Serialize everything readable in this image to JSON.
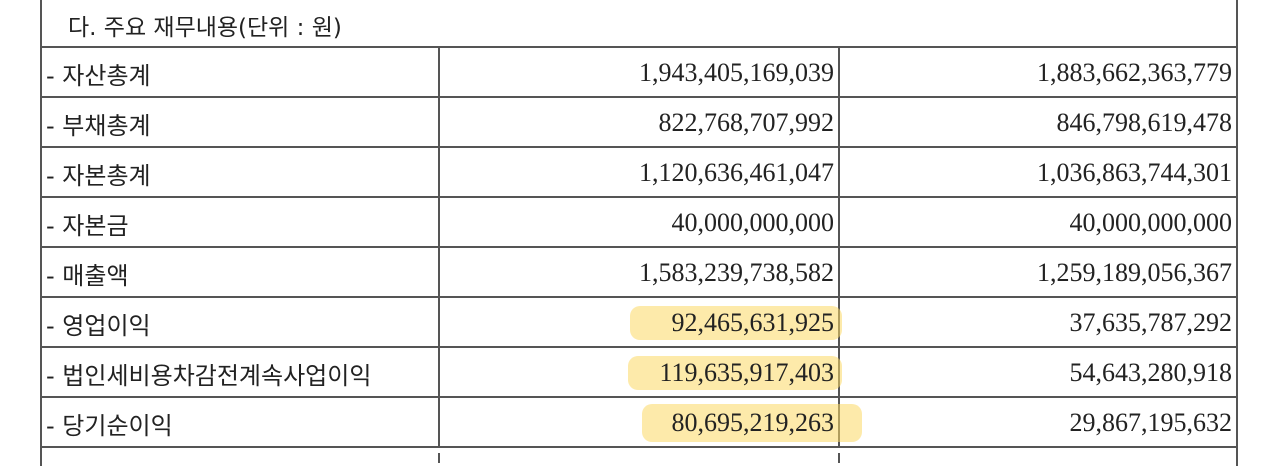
{
  "title": "다. 주요 재무내용(단위 : 원)",
  "rows": [
    {
      "label": "- 자산총계",
      "v1": "1,943,405,169,039",
      "v2": "1,883,662,363,779",
      "highlight": false
    },
    {
      "label": "- 부채총계",
      "v1": "822,768,707,992",
      "v2": "846,798,619,478",
      "highlight": false
    },
    {
      "label": "- 자본총계",
      "v1": "1,120,636,461,047",
      "v2": "1,036,863,744,301",
      "highlight": false
    },
    {
      "label": "- 자본금",
      "v1": "40,000,000,000",
      "v2": "40,000,000,000",
      "highlight": false
    },
    {
      "label": "- 매출액",
      "v1": "1,583,239,738,582",
      "v2": "1,259,189,056,367",
      "highlight": false
    },
    {
      "label": "- 영업이익",
      "v1": "92,465,631,925",
      "v2": "37,635,787,292",
      "highlight": true
    },
    {
      "label": "- 법인세비용차감전계속사업이익",
      "v1": "119,635,917,403",
      "v2": "54,643,280,918",
      "highlight": true
    },
    {
      "label": "- 당기순이익",
      "v1": "80,695,219,263",
      "v2": "29,867,195,632",
      "highlight": true
    }
  ],
  "highlight_color": "#fcd964"
}
